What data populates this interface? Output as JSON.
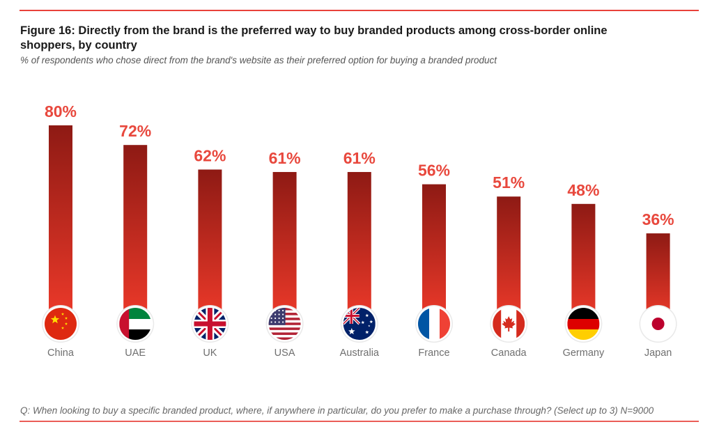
{
  "title": "Figure 16: Directly from the brand is the preferred way to buy branded products among cross-border online shoppers, by country",
  "subtitle": "% of respondents who chose direct from the brand's website as their preferred option for buying a branded product",
  "footnote": "Q: When looking to buy a specific branded product, where, if anywhere in particular, do you prefer to make a purchase through?  (Select up to 3) N=9000",
  "colors": {
    "accent": "#e8413a",
    "bar_top": "#8e1a14",
    "bar_bottom": "#ee3a2a",
    "value_label": "#e8483d",
    "category_label": "#6f6f6f"
  },
  "chart_data": {
    "type": "bar",
    "categories": [
      "China",
      "UAE",
      "UK",
      "USA",
      "Australia",
      "France",
      "Canada",
      "Germany",
      "Japan"
    ],
    "values": [
      80,
      72,
      62,
      61,
      61,
      56,
      51,
      48,
      36
    ],
    "value_labels": [
      "80%",
      "72%",
      "62%",
      "61%",
      "61%",
      "56%",
      "51%",
      "48%",
      "36%"
    ],
    "flags": [
      "china-flag-icon",
      "uae-flag-icon",
      "uk-flag-icon",
      "usa-flag-icon",
      "australia-flag-icon",
      "france-flag-icon",
      "canada-flag-icon",
      "germany-flag-icon",
      "japan-flag-icon"
    ],
    "xlabel": "",
    "ylabel": "",
    "ylim": [
      0,
      100
    ],
    "grid": false,
    "legend": "none"
  }
}
